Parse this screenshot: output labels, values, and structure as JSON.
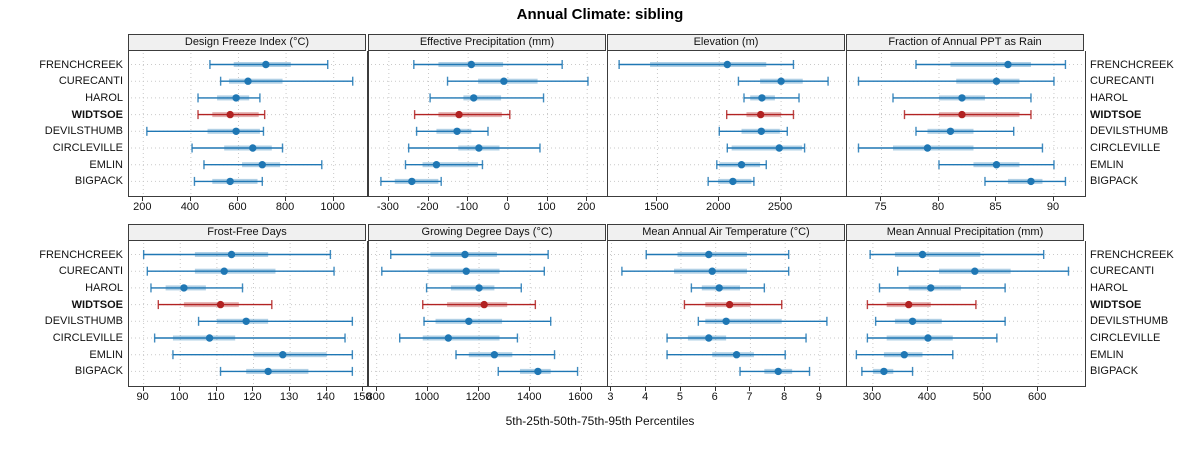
{
  "chart_data": {
    "type": "dotplot",
    "title": "Annual Climate: sibling",
    "xlabel": "5th-25th-50th-75th-95th Percentiles",
    "percentiles": [
      5,
      25,
      50,
      75,
      95
    ],
    "legend_position": "none",
    "grid": "dotted",
    "sites": [
      "FRENCHCREEK",
      "CURECANTI",
      "HAROL",
      "WIDTSOE",
      "DEVILSTHUMB",
      "CIRCLEVILLE",
      "EMLIN",
      "BIGPACK"
    ],
    "highlight_site": "WIDTSOE",
    "colors": {
      "series": "#1f77b4",
      "highlight": "#b22222",
      "strip_bg": "#f0f0f0",
      "grid": "#c9c9c9"
    },
    "panels": [
      {
        "title": "Design Freeze Index (°C)",
        "xlim": [
          140,
          1140
        ],
        "ticks": [
          200,
          400,
          600,
          800,
          1000
        ],
        "values": [
          [
            480,
            580,
            715,
            820,
            975
          ],
          [
            525,
            560,
            640,
            785,
            1080
          ],
          [
            430,
            510,
            590,
            645,
            690
          ],
          [
            430,
            490,
            565,
            685,
            710
          ],
          [
            215,
            470,
            590,
            690,
            705
          ],
          [
            405,
            540,
            660,
            740,
            785
          ],
          [
            455,
            615,
            700,
            775,
            950
          ],
          [
            415,
            490,
            565,
            680,
            700
          ]
        ]
      },
      {
        "title": "Effective Precipitation (mm)",
        "xlim": [
          -350,
          250
        ],
        "ticks": [
          -300,
          -200,
          -100,
          0,
          100,
          200
        ],
        "values": [
          [
            -237,
            -175,
            -92,
            -12,
            137
          ],
          [
            -152,
            -75,
            -10,
            75,
            202
          ],
          [
            -196,
            -112,
            -86,
            -17,
            90
          ],
          [
            -235,
            -175,
            -123,
            -15,
            5
          ],
          [
            -230,
            -180,
            -128,
            -92,
            -50
          ],
          [
            -250,
            -125,
            -73,
            -21,
            81
          ],
          [
            -258,
            -215,
            -180,
            -75,
            -64
          ],
          [
            -320,
            -285,
            -242,
            -175,
            -168
          ]
        ]
      },
      {
        "title": "Elevation (m)",
        "xlim": [
          1100,
          3025
        ],
        "ticks": [
          1500,
          2000,
          2500
        ],
        "values": [
          [
            1190,
            1440,
            2065,
            2380,
            2600
          ],
          [
            2155,
            2330,
            2500,
            2675,
            2880
          ],
          [
            2200,
            2250,
            2345,
            2450,
            2645
          ],
          [
            2060,
            2220,
            2335,
            2500,
            2600
          ],
          [
            2000,
            2180,
            2340,
            2490,
            2550
          ],
          [
            2065,
            2100,
            2485,
            2670,
            2690
          ],
          [
            1980,
            2000,
            2180,
            2330,
            2380
          ],
          [
            1910,
            1990,
            2110,
            2260,
            2280
          ]
        ]
      },
      {
        "title": "Fraction of Annual PPT as Rain",
        "xlim": [
          72,
          92.7
        ],
        "ticks": [
          75,
          80,
          85,
          90
        ],
        "values": [
          [
            78,
            81,
            86,
            88,
            91
          ],
          [
            73,
            81.5,
            85,
            87,
            90
          ],
          [
            76,
            80,
            82,
            84,
            88
          ],
          [
            77,
            80,
            82,
            87,
            88
          ],
          [
            78,
            79,
            81,
            83,
            86.5
          ],
          [
            73,
            76,
            79,
            83,
            89
          ],
          [
            80,
            83,
            85,
            87,
            90
          ],
          [
            84,
            86,
            88,
            89,
            91
          ]
        ]
      },
      {
        "title": "Frost-Free Days",
        "xlim": [
          86,
          151
        ],
        "ticks": [
          90,
          100,
          110,
          120,
          130,
          140,
          150
        ],
        "values": [
          [
            90,
            104,
            114,
            124,
            141
          ],
          [
            91,
            104,
            112,
            126,
            142
          ],
          [
            92,
            96,
            101,
            107,
            117
          ],
          [
            94,
            101,
            111,
            116,
            125
          ],
          [
            105,
            110,
            118,
            124,
            147
          ],
          [
            93,
            98,
            108,
            115,
            145
          ],
          [
            98,
            120,
            128,
            140,
            147
          ],
          [
            111,
            118,
            124,
            135,
            147
          ]
        ]
      },
      {
        "title": "Growing Degree Days (°C)",
        "xlim": [
          770,
          1700
        ],
        "ticks": [
          800,
          1000,
          1200,
          1400,
          1600
        ],
        "values": [
          [
            855,
            1010,
            1145,
            1270,
            1470
          ],
          [
            820,
            1000,
            1150,
            1280,
            1455
          ],
          [
            995,
            1090,
            1200,
            1260,
            1365
          ],
          [
            980,
            1075,
            1220,
            1310,
            1420
          ],
          [
            985,
            1030,
            1160,
            1290,
            1480
          ],
          [
            890,
            980,
            1080,
            1280,
            1350
          ],
          [
            1110,
            1160,
            1260,
            1330,
            1495
          ],
          [
            1275,
            1360,
            1430,
            1480,
            1585
          ]
        ]
      },
      {
        "title": "Mean Annual Air Temperature (°C)",
        "xlim": [
          2.9,
          9.75
        ],
        "ticks": [
          3,
          4,
          5,
          6,
          7,
          8,
          9
        ],
        "values": [
          [
            4.0,
            4.9,
            5.8,
            6.9,
            8.1
          ],
          [
            3.3,
            4.8,
            5.9,
            6.9,
            8.1
          ],
          [
            5.3,
            5.6,
            6.1,
            6.7,
            7.4
          ],
          [
            5.1,
            5.7,
            6.4,
            7.0,
            7.9
          ],
          [
            5.5,
            5.7,
            6.3,
            7.9,
            9.2
          ],
          [
            4.6,
            5.2,
            5.8,
            6.3,
            8.6
          ],
          [
            4.6,
            5.9,
            6.6,
            7.1,
            8.0
          ],
          [
            6.7,
            7.4,
            7.8,
            8.2,
            8.7
          ]
        ]
      },
      {
        "title": "Mean Annual Precipitation (mm)",
        "xlim": [
          253,
          685
        ],
        "ticks": [
          300,
          400,
          500,
          600
        ],
        "values": [
          [
            295,
            340,
            390,
            495,
            610
          ],
          [
            345,
            420,
            485,
            550,
            655
          ],
          [
            312,
            365,
            405,
            460,
            540
          ],
          [
            290,
            325,
            365,
            405,
            487
          ],
          [
            305,
            340,
            372,
            425,
            540
          ],
          [
            290,
            325,
            400,
            445,
            525
          ],
          [
            270,
            320,
            357,
            390,
            445
          ],
          [
            280,
            300,
            320,
            337,
            372
          ]
        ]
      }
    ]
  }
}
